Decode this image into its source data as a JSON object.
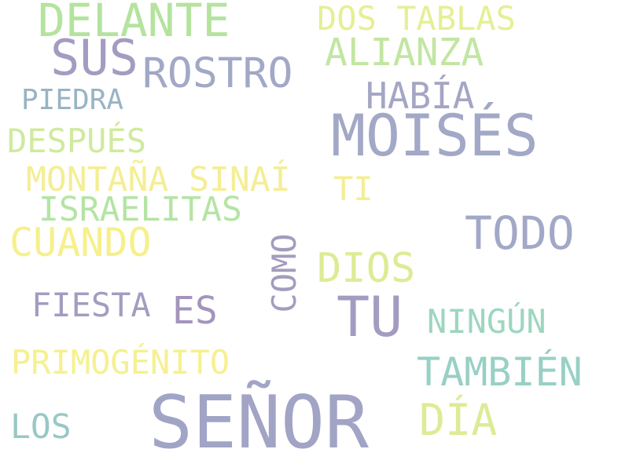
{
  "words": [
    {
      "text": "DELANTE",
      "color": "#b4e39e"
    },
    {
      "text": "DOS TABLAS",
      "color": "#e6ef94"
    },
    {
      "text": "SUS",
      "color": "#a49cc0"
    },
    {
      "text": "ROSTRO",
      "color": "#a2a8c6"
    },
    {
      "text": "ALIANZA",
      "color": "#c2e6a2"
    },
    {
      "text": "PIEDRA",
      "color": "#98b4c4"
    },
    {
      "text": "HABÍA",
      "color": "#a4a6c4"
    },
    {
      "text": "MOISÉS",
      "color": "#a2a8c6"
    },
    {
      "text": "DESPUÉS",
      "color": "#d0ea9e"
    },
    {
      "text": "MONTAÑA SINAÍ",
      "color": "#f4ee94"
    },
    {
      "text": "TI",
      "color": "#f4ee94"
    },
    {
      "text": "ISRAELITAS",
      "color": "#b4e4a4"
    },
    {
      "text": "CUANDO",
      "color": "#f6f08c"
    },
    {
      "text": "TODO",
      "color": "#a2a8c6"
    },
    {
      "text": "COMO",
      "color": "#a49cbe"
    },
    {
      "text": "DIOS",
      "color": "#dcec94"
    },
    {
      "text": "FIESTA",
      "color": "#a49cc0"
    },
    {
      "text": "ES",
      "color": "#a494bc"
    },
    {
      "text": "TU",
      "color": "#a49cc0"
    },
    {
      "text": "NINGÚN",
      "color": "#9ed6c0"
    },
    {
      "text": "PRIMOGÉNITO",
      "color": "#f6f090"
    },
    {
      "text": "TAMBIÉN",
      "color": "#98d0c4"
    },
    {
      "text": "SEÑOR",
      "color": "#a2a4c6"
    },
    {
      "text": "DÍA",
      "color": "#dcec96"
    },
    {
      "text": "LOS",
      "color": "#98c8c6"
    }
  ]
}
